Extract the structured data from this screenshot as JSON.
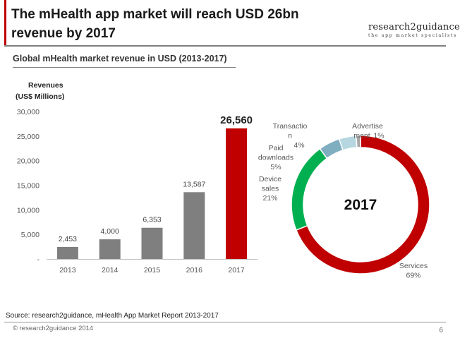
{
  "header": {
    "title": "The mHealth app market will reach USD 26bn revenue by 2017",
    "logo_name": "research2guidance",
    "logo_tagline": "the app market specialists"
  },
  "subtitle": "Global mHealth market revenue in USD (2013-2017)",
  "ylabel_line1": "Revenues",
  "ylabel_line2": "(US$ Millions)",
  "colors": {
    "accent_red": "#c00000",
    "bar_gray": "#7f7f7f",
    "green": "#00b050",
    "teal": "#7faec1",
    "light_blue": "#b7d7e0",
    "ad_gray": "#a6a6a6"
  },
  "chart_data": [
    {
      "type": "bar",
      "title": "Global mHealth market revenue in USD (2013-2017)",
      "xlabel": "",
      "ylabel": "Revenues (US$ Millions)",
      "categories": [
        "2013",
        "2014",
        "2015",
        "2016",
        "2017"
      ],
      "values": [
        2453,
        4000,
        6353,
        13587,
        26560
      ],
      "value_labels": [
        "2,453",
        "4,000",
        "6,353",
        "13,587",
        "26,560"
      ],
      "ylim": [
        0,
        30000
      ],
      "yticks": [
        0,
        5000,
        10000,
        15000,
        20000,
        25000,
        30000
      ],
      "ytick_labels": [
        "-",
        "5,000",
        "10,000",
        "15,000",
        "20,000",
        "25,000",
        "30,000"
      ],
      "grid": false,
      "highlight_category": "2017"
    },
    {
      "type": "pie",
      "donut": true,
      "center_label": "2017",
      "slices": [
        {
          "name_lines": [
            "Services"
          ],
          "label": "Services",
          "pct_label": "69%",
          "value": 69,
          "color": "#c00000"
        },
        {
          "name_lines": [
            "Device",
            "sales"
          ],
          "label": "Device sales",
          "pct_label": "21%",
          "value": 21,
          "color": "#00b050"
        },
        {
          "name_lines": [
            "Paid",
            "downloads"
          ],
          "label": "Paid downloads",
          "pct_label": "5%",
          "value": 5,
          "color": "#7faec1"
        },
        {
          "name_lines": [
            "Transactio",
            "n"
          ],
          "label": "Transaction",
          "pct_label": "4%",
          "value": 4,
          "color": "#b7d7e0"
        },
        {
          "name_lines": [
            "Advertise",
            "ment"
          ],
          "label": "Advertisement",
          "pct_label": "1%",
          "value": 1,
          "color": "#a6a6a6"
        }
      ]
    }
  ],
  "footer": {
    "source": "Source: research2guidance, mHealth App Market Report 2013-2017",
    "copyright": "© research2guidance 2014",
    "page_number": "6"
  }
}
